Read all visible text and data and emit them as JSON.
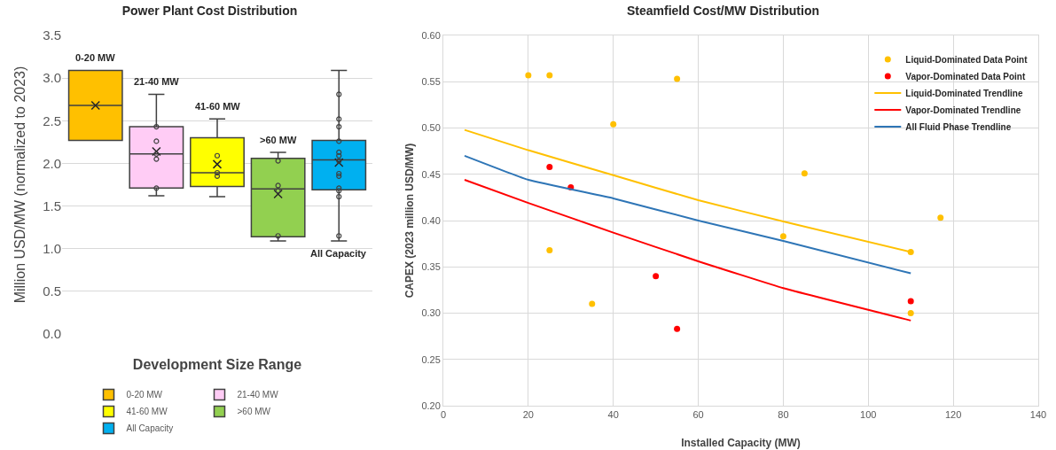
{
  "chart_data": [
    {
      "type": "box",
      "title": "Power Plant Cost Distribution",
      "xlabel": "Development Size Range",
      "ylabel": "Million USD/MW (normalized to 2023)",
      "categories": [
        null,
        null,
        null,
        null,
        null
      ],
      "ylim": [
        0,
        3.5
      ],
      "yticks": [
        {
          "value": 0,
          "label": "0.0"
        },
        {
          "value": 0.5,
          "label": "0.5"
        },
        {
          "value": 1,
          "label": "1.0"
        },
        {
          "value": 1.5,
          "label": "1.5"
        },
        {
          "value": 2,
          "label": "2.0"
        },
        {
          "value": 2.5,
          "label": "2.5"
        },
        {
          "value": 3,
          "label": "3.0"
        },
        {
          "value": 3.5,
          "label": "3.5"
        }
      ],
      "grid": "y",
      "legend": "bottom",
      "tick_labels": "y",
      "annotations": [
        "0-20 MW",
        "21-40 MW",
        "41-60 MW",
        ">60 MW",
        "All Capacity"
      ],
      "series": [
        {
          "name": "0-20 MW",
          "color": "#ffc000",
          "boxes": [
            {
              "low": 2.27,
              "q1": 2.27,
              "median": 2.68,
              "q3": 3.09,
              "high": 3.09,
              "mean": 2.68
            },
            null,
            null,
            null,
            null
          ]
        },
        {
          "name": "21-40 MW",
          "color": "#ffccf5",
          "boxes": [
            null,
            {
              "low": 1.62,
              "q1": 1.71,
              "median": 2.11,
              "q3": 2.43,
              "high": 2.81,
              "mean": 2.14,
              "outliers": [
                2.43,
                2.26,
                2.11,
                2.05,
                1.71
              ]
            },
            null,
            null,
            null
          ]
        },
        {
          "name": "41-60 MW",
          "color": "#ffff00",
          "boxes": [
            null,
            null,
            {
              "low": 1.61,
              "q1": 1.73,
              "median": 1.89,
              "q3": 2.3,
              "high": 2.52,
              "mean": 1.99,
              "outliers": [
                2.09,
                1.89,
                1.85
              ]
            },
            null,
            null
          ]
        },
        {
          "name": ">60 MW",
          "color": "#92d050",
          "boxes": [
            null,
            null,
            null,
            {
              "low": 1.09,
              "q1": 1.14,
              "median": 1.7,
              "q3": 2.06,
              "high": 2.13,
              "mean": 1.64,
              "outliers": [
                2.03,
                1.74,
                1.68,
                1.15
              ]
            },
            null
          ]
        },
        {
          "name": "All Capacity",
          "color": "#00b0f0",
          "boxes": [
            null,
            null,
            null,
            null,
            {
              "low": 1.09,
              "q1": 1.69,
              "median": 2.04,
              "q3": 2.27,
              "high": 3.09,
              "mean": 2.01,
              "outliers": [
                2.81,
                2.52,
                2.43,
                2.26,
                2.13,
                2.09,
                2.03,
                1.88,
                1.85,
                1.71,
                1.68,
                1.61,
                1.15
              ]
            }
          ]
        }
      ]
    },
    {
      "type": "scatter",
      "title": "Steamfield Cost/MW Distribution",
      "xlabel": "Installed Capacity (MW)",
      "ylabel": "CAPEX (2023 million USD/MW)",
      "xlim": [
        0,
        140
      ],
      "xticks": [
        0,
        20,
        40,
        60,
        80,
        100,
        120,
        140
      ],
      "ylim": [
        0.2,
        0.6
      ],
      "yticks": [
        {
          "value": 0.2,
          "label": "0.20"
        },
        {
          "value": 0.25,
          "label": "0.25"
        },
        {
          "value": 0.3,
          "label": "0.30"
        },
        {
          "value": 0.35,
          "label": "0.35"
        },
        {
          "value": 0.4,
          "label": "0.40"
        },
        {
          "value": 0.45,
          "label": "0.45"
        },
        {
          "value": 0.5,
          "label": "0.50"
        },
        {
          "value": 0.55,
          "label": "0.55"
        },
        {
          "value": 0.6,
          "label": "0.60"
        }
      ],
      "grid": true,
      "legend": "top right",
      "marker": "circle",
      "series": [
        {
          "name": "Liquid-Dominated Data Point",
          "color": "#ffc000",
          "x": [
            20,
            25,
            55,
            40,
            25,
            35,
            80,
            85,
            117,
            110,
            110
          ],
          "values": [
            0.557,
            0.557,
            0.553,
            0.504,
            0.368,
            0.31,
            0.383,
            0.451,
            0.403,
            0.366,
            0.3
          ]
        },
        {
          "name": "Vapor-Dominated Data Point",
          "color": "#ff0000",
          "x": [
            25,
            30,
            50,
            55,
            110
          ],
          "values": [
            0.458,
            0.436,
            0.34,
            0.283,
            0.313
          ]
        },
        {
          "name": "Liquid-Dominated Trendline",
          "type": "line",
          "marker": "none",
          "color": "#ffc000",
          "x": [
            5,
            20,
            40,
            60,
            80,
            110
          ],
          "values": [
            0.498,
            0.476,
            0.449,
            0.422,
            0.399,
            0.366
          ]
        },
        {
          "name": "Vapor-Dominated Trendline",
          "type": "line",
          "marker": "none",
          "color": "#ff0000",
          "x": [
            5,
            20,
            40,
            60,
            80,
            110
          ],
          "values": [
            0.444,
            0.419,
            0.387,
            0.356,
            0.327,
            0.292
          ]
        },
        {
          "name": "All Fluid Phase Trendline",
          "type": "line",
          "marker": "none",
          "color": "#2e75b6",
          "x": [
            5,
            20,
            40,
            60,
            80,
            110
          ],
          "values": [
            0.47,
            0.444,
            0.424,
            0.4,
            0.378,
            0.343
          ]
        }
      ]
    }
  ]
}
